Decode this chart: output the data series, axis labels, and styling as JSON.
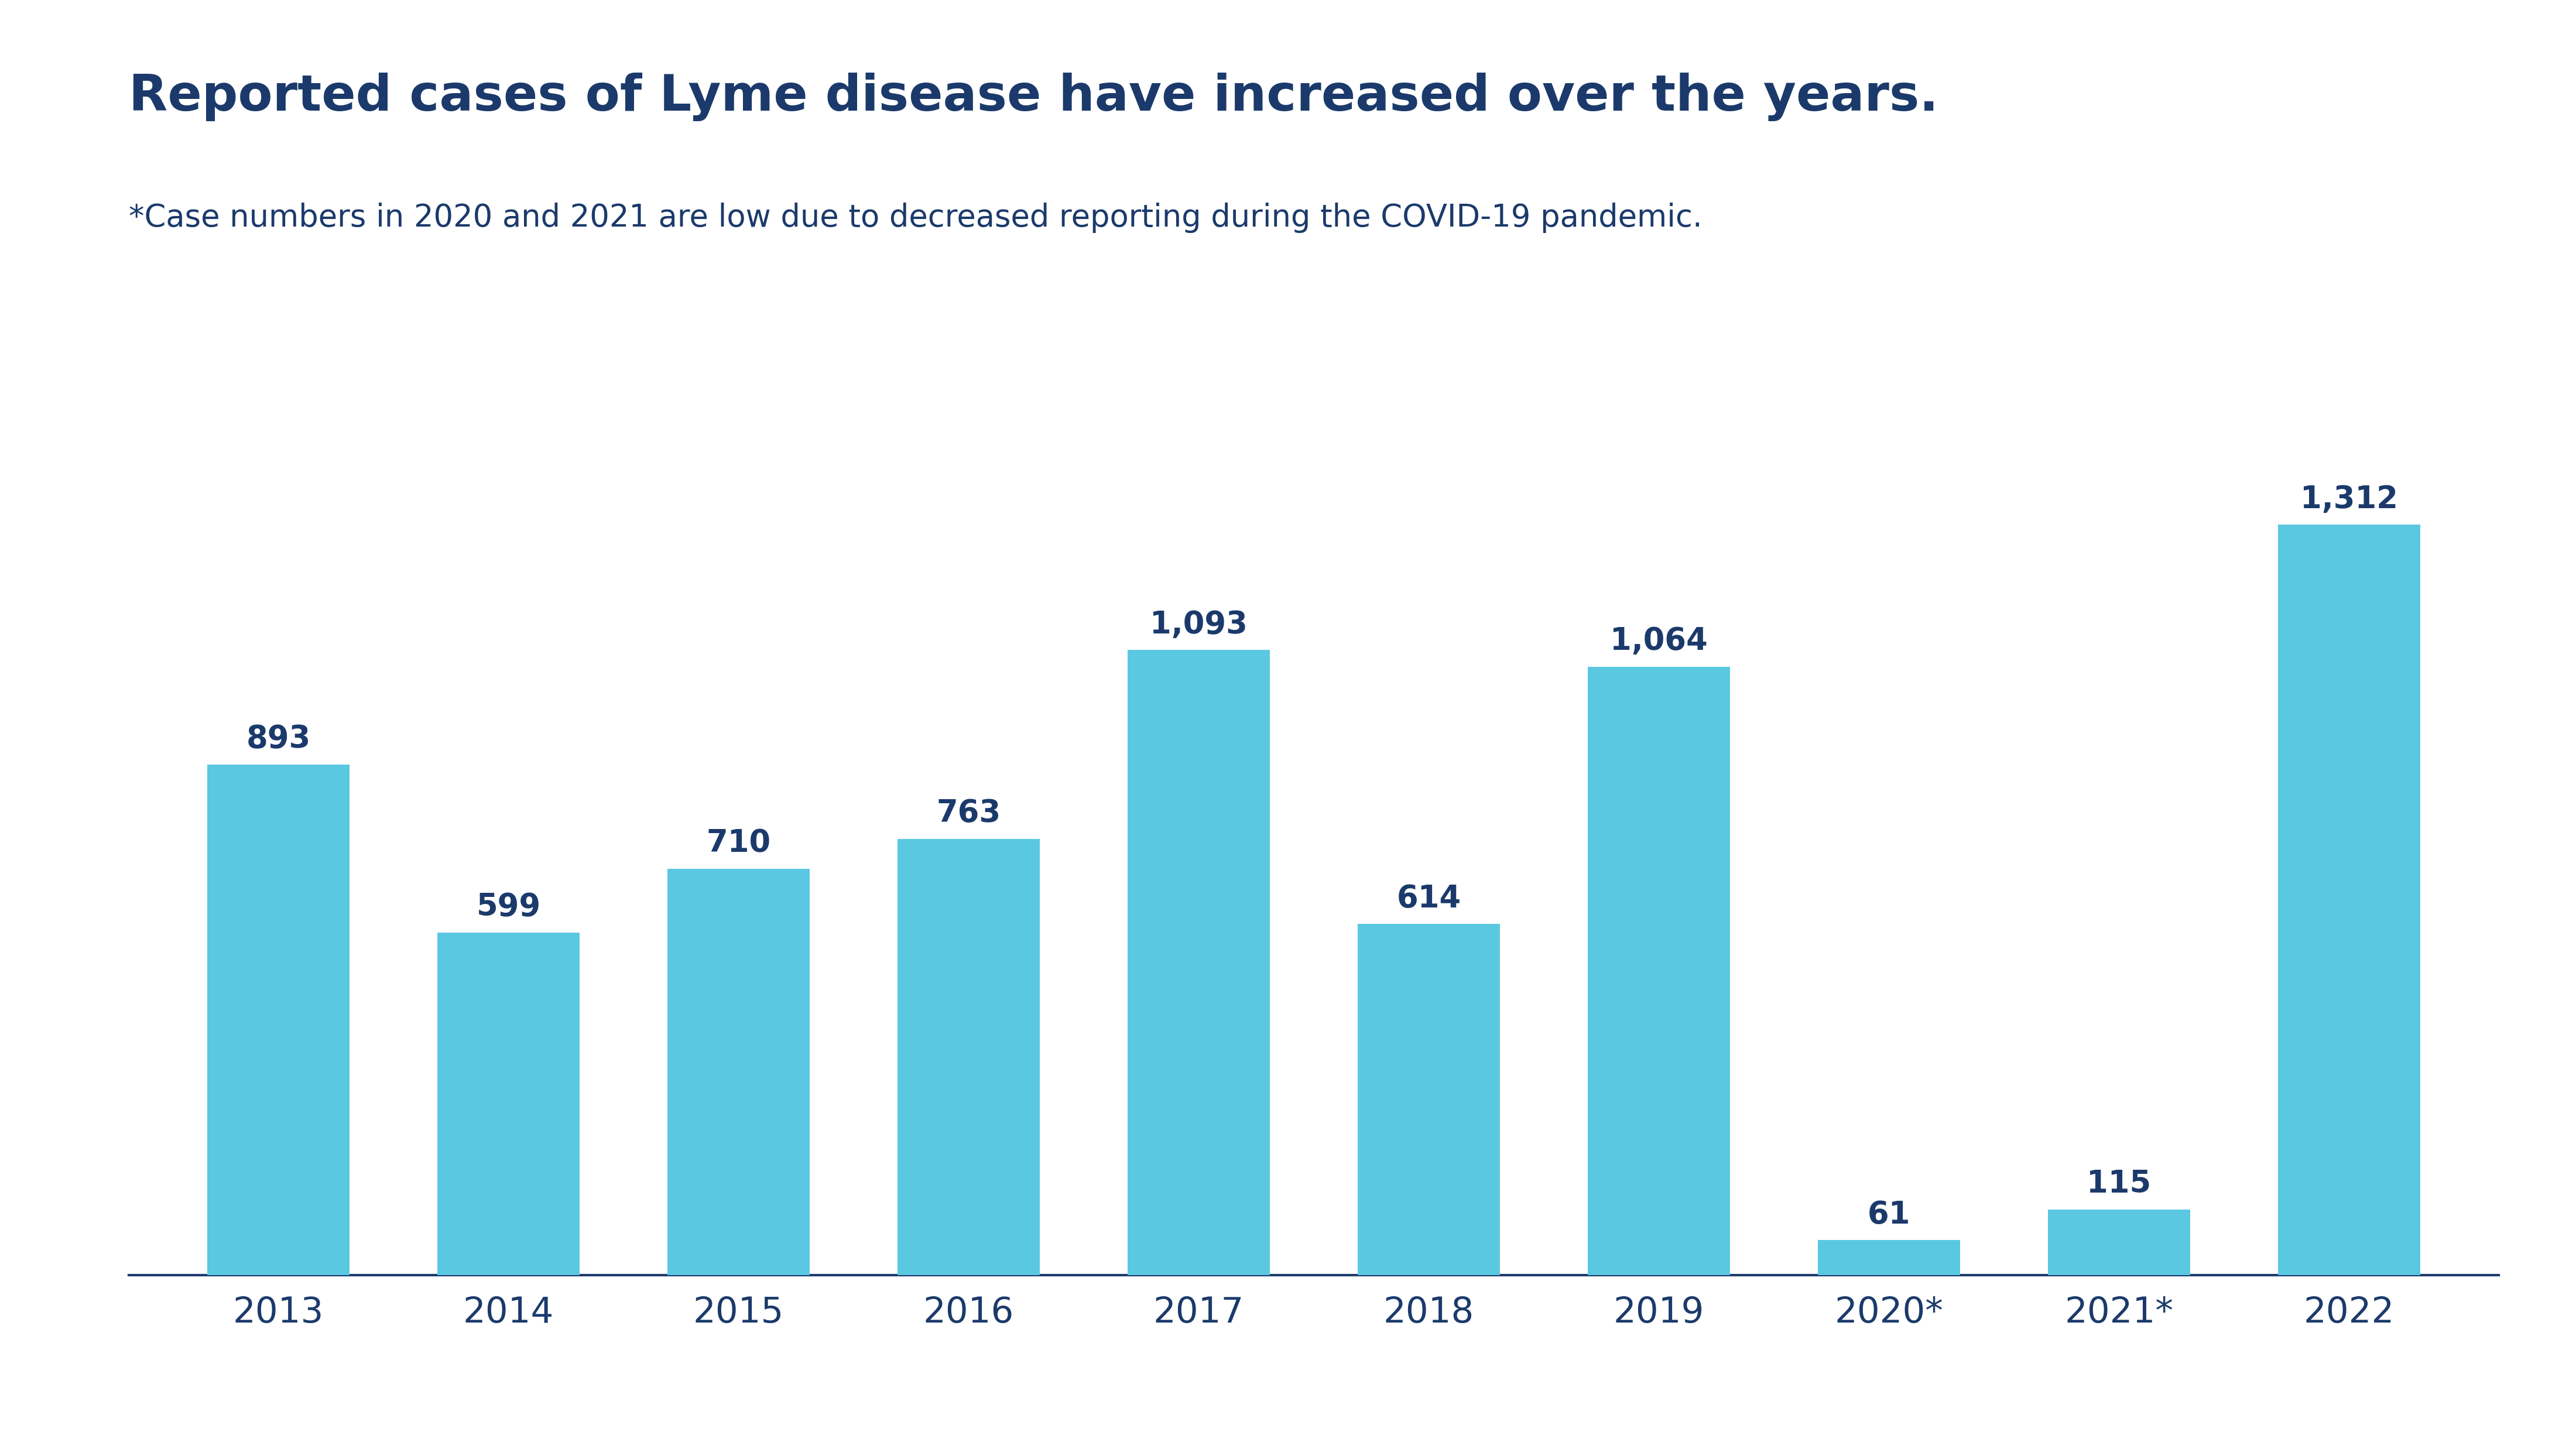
{
  "title": "Reported cases of Lyme disease have increased over the years.",
  "subtitle": "*Case numbers in 2020 and 2021 are low due to decreased reporting during the COVID-19 pandemic.",
  "categories": [
    "2013",
    "2014",
    "2015",
    "2016",
    "2017",
    "2018",
    "2019",
    "2020*",
    "2021*",
    "2022"
  ],
  "values": [
    893,
    599,
    710,
    763,
    1093,
    614,
    1064,
    61,
    115,
    1312
  ],
  "bar_color": "#5BC8E2",
  "background_color": "#ffffff",
  "title_color": "#1B3A6B",
  "subtitle_color": "#1B3A6B",
  "label_color": "#1B3A6B",
  "tick_color": "#1B3A6B",
  "axis_line_color": "#1B3A6B",
  "title_fontsize": 62,
  "subtitle_fontsize": 38,
  "value_label_fontsize": 38,
  "tick_fontsize": 44,
  "ylim": [
    0,
    1520
  ],
  "bar_width": 0.62
}
